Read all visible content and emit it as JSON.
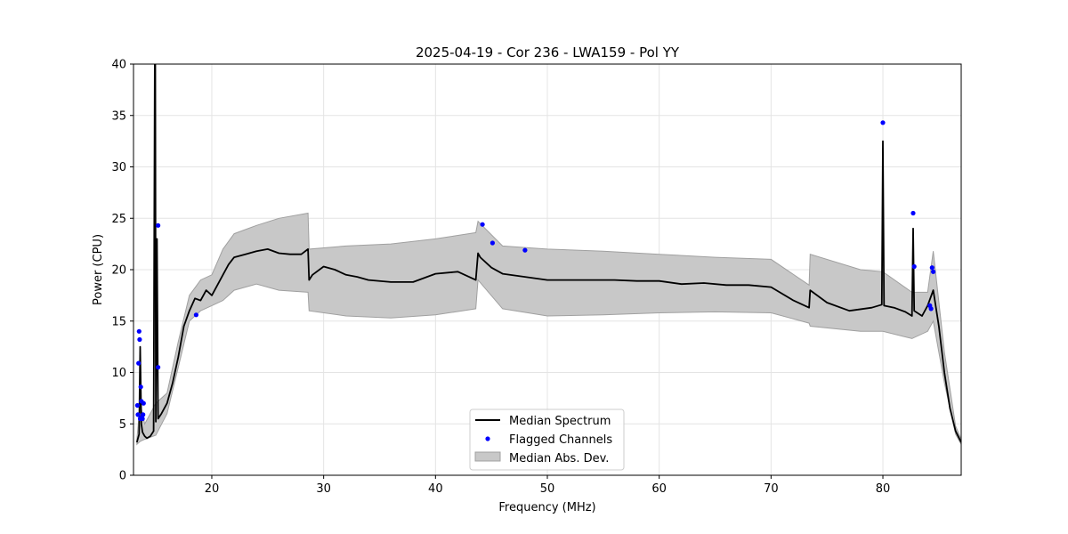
{
  "chart_data": {
    "type": "line",
    "title": "2025-04-19 - Cor 236 - LWA159 - Pol YY",
    "xlabel": "Frequency (MHz)",
    "ylabel": "Power (CPU)",
    "xlim": [
      13,
      87
    ],
    "ylim": [
      0,
      40
    ],
    "xticks": [
      20,
      30,
      40,
      50,
      60,
      70,
      80
    ],
    "yticks": [
      0,
      5,
      10,
      15,
      20,
      25,
      30,
      35,
      40
    ],
    "grid": true,
    "legend_position": "bottom-center",
    "legend": [
      "Median Spectrum",
      "Flagged Channels",
      "Median Abs. Dev."
    ],
    "colors": {
      "median": "#000000",
      "flagged": "#0000ff",
      "mad": "#c8c8c8",
      "mad_edge": "#a0a0a0"
    },
    "series": [
      {
        "name": "Median Spectrum",
        "x": [
          13.3,
          13.5,
          13.6,
          13.7,
          13.8,
          13.9,
          14.0,
          14.2,
          14.5,
          14.8,
          14.9,
          14.95,
          15.0,
          15.1,
          15.2,
          15.5,
          16.0,
          16.5,
          17.0,
          17.5,
          18.0,
          18.5,
          19.0,
          19.5,
          20.0,
          20.5,
          21.0,
          21.5,
          22.0,
          23.0,
          24.0,
          25.0,
          26.0,
          27.0,
          28.0,
          28.6,
          28.7,
          29.0,
          30.0,
          31.0,
          32.0,
          33.0,
          34.0,
          36.0,
          38.0,
          40.0,
          42.0,
          43.6,
          43.8,
          44.0,
          45.0,
          46.0,
          48.0,
          50.0,
          52.0,
          54.0,
          56.0,
          58.0,
          60.0,
          62.0,
          64.0,
          66.0,
          68.0,
          70.0,
          72.0,
          73.4,
          73.5,
          75.0,
          77.0,
          79.0,
          79.9,
          80.0,
          80.1,
          81.0,
          82.0,
          82.6,
          82.7,
          82.8,
          83.5,
          84.0,
          84.5,
          85.0,
          85.5,
          86.0,
          86.5,
          87.0
        ],
        "y": [
          3.2,
          4.0,
          12.5,
          5.0,
          4.2,
          4.0,
          3.8,
          3.6,
          3.8,
          4.3,
          40.0,
          40.0,
          5.2,
          23.0,
          5.5,
          6.0,
          7.0,
          9.0,
          11.5,
          14.5,
          16.0,
          17.2,
          17.0,
          18.0,
          17.5,
          18.5,
          19.5,
          20.5,
          21.2,
          21.5,
          21.8,
          22.0,
          21.6,
          21.5,
          21.5,
          22.0,
          19.0,
          19.5,
          20.3,
          20.0,
          19.5,
          19.3,
          19.0,
          18.8,
          18.8,
          19.6,
          19.8,
          19.0,
          21.6,
          21.2,
          20.2,
          19.6,
          19.3,
          19.0,
          19.0,
          19.0,
          19.0,
          18.9,
          18.9,
          18.6,
          18.7,
          18.5,
          18.5,
          18.3,
          17.0,
          16.3,
          18.0,
          16.8,
          16.0,
          16.3,
          16.6,
          32.5,
          16.5,
          16.3,
          15.9,
          15.5,
          24.0,
          16.0,
          15.5,
          16.5,
          18.0,
          14.5,
          10.0,
          6.5,
          4.3,
          3.2
        ]
      }
    ],
    "mad_band": {
      "x": [
        13.3,
        13.6,
        14.0,
        15.0,
        16.0,
        17.0,
        18.0,
        19.0,
        20.0,
        21.0,
        22.0,
        24.0,
        26.0,
        28.6,
        28.7,
        32.0,
        36.0,
        40.0,
        43.6,
        43.8,
        46.0,
        50.0,
        55.0,
        60.0,
        65.0,
        70.0,
        73.4,
        73.5,
        78.0,
        80.0,
        82.6,
        84.0,
        84.5,
        85.5,
        86.5,
        87.0
      ],
      "lower": [
        3.0,
        3.3,
        3.5,
        3.9,
        6.0,
        10.5,
        15.0,
        16.0,
        16.5,
        17.0,
        18.0,
        18.6,
        18.0,
        17.8,
        16.0,
        15.5,
        15.3,
        15.6,
        16.2,
        19.0,
        16.2,
        15.5,
        15.6,
        15.8,
        15.9,
        15.8,
        14.8,
        14.5,
        14.0,
        14.0,
        13.3,
        14.0,
        15.0,
        9.0,
        4.0,
        3.0
      ],
      "upper": [
        3.5,
        7.0,
        5.0,
        7.0,
        8.0,
        13.0,
        17.5,
        19.0,
        19.5,
        22.0,
        23.5,
        24.3,
        25.0,
        25.5,
        22.0,
        22.3,
        22.5,
        23.0,
        23.6,
        24.7,
        22.3,
        22.0,
        21.8,
        21.5,
        21.2,
        21.0,
        18.5,
        21.5,
        20.0,
        19.8,
        17.8,
        17.8,
        21.8,
        12.0,
        4.8,
        3.5
      ]
    },
    "flagged_channels": {
      "x": [
        13.35,
        13.4,
        13.45,
        13.5,
        13.55,
        13.6,
        13.65,
        13.7,
        13.75,
        13.8,
        13.85,
        13.9,
        15.2,
        15.2,
        18.6,
        44.2,
        45.1,
        48.0,
        80.0,
        82.7,
        82.8,
        84.2,
        84.3,
        84.4,
        84.5
      ],
      "y": [
        6.8,
        5.9,
        10.9,
        14.0,
        13.2,
        5.5,
        8.6,
        7.2,
        5.6,
        5.5,
        5.9,
        7.0,
        24.3,
        10.5,
        15.6,
        24.4,
        22.6,
        21.9,
        34.3,
        25.5,
        20.3,
        16.5,
        16.2,
        20.2,
        19.8
      ]
    }
  }
}
